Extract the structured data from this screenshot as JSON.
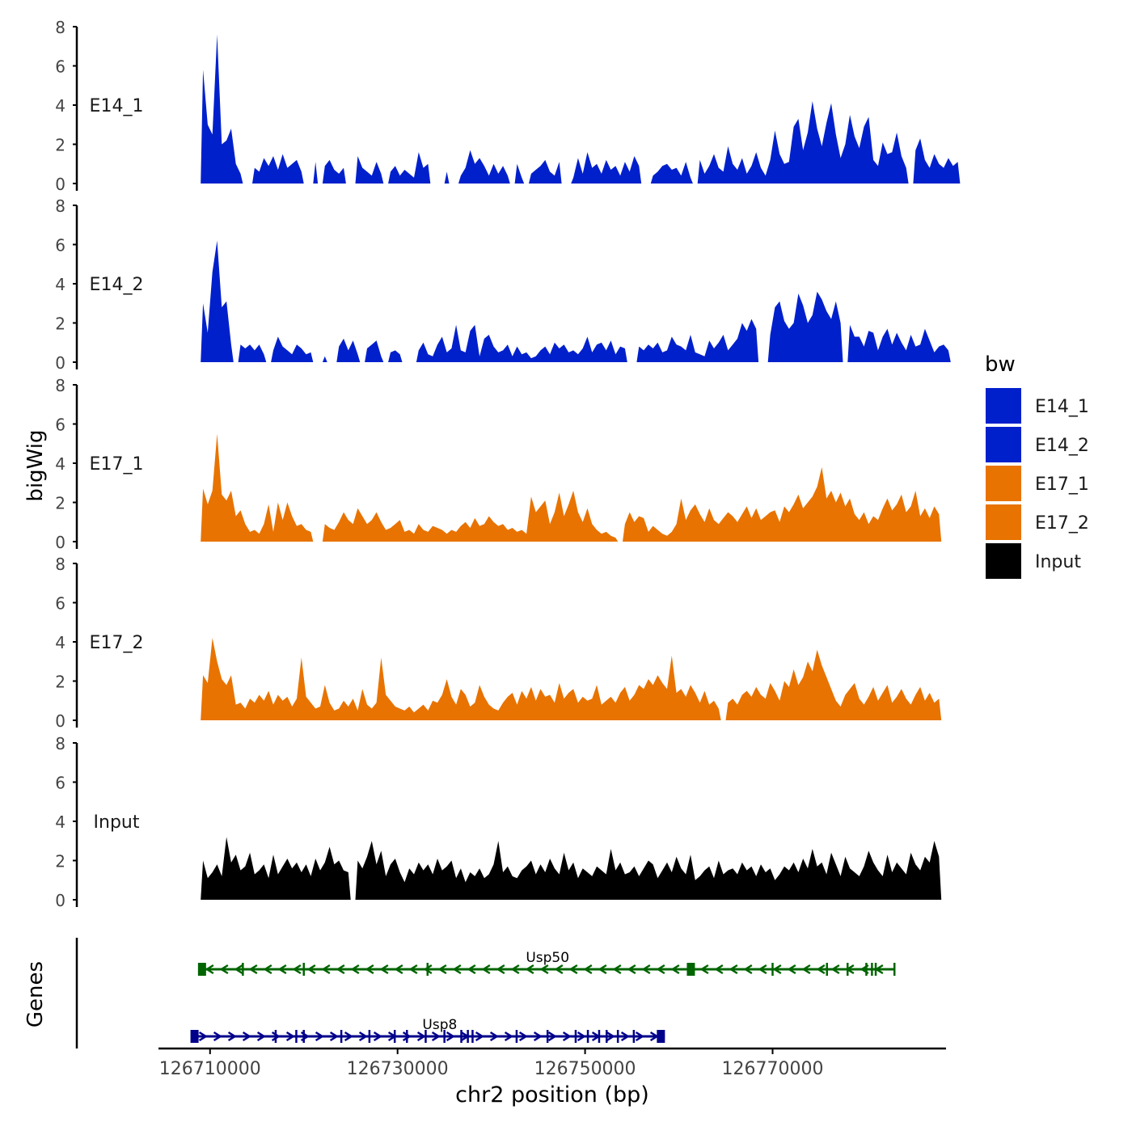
{
  "chart_data": {
    "type": "area",
    "title": "",
    "xlabel": "chr2 position (bp)",
    "ylabel": "bigWig",
    "genes_label": "Genes",
    "xlim": [
      126704500,
      126788500
    ],
    "x_ticks": [
      126710000,
      126730000,
      126750000,
      126770000
    ],
    "x_tick_labels": [
      "126710000",
      "126730000",
      "126750000",
      "126770000"
    ],
    "ylim": [
      0,
      8
    ],
    "y_ticks": [
      0,
      2,
      4,
      6,
      8
    ],
    "y_tick_labels": [
      "0",
      "2",
      "4",
      "6",
      "8"
    ],
    "track_start": 126709000,
    "track_end": 126785000,
    "bin_size": 500,
    "legend": {
      "title": "bw",
      "position": "right",
      "entries": [
        {
          "label": "E14_1",
          "color": "#0020CC"
        },
        {
          "label": "E14_2",
          "color": "#0020CC"
        },
        {
          "label": "E17_1",
          "color": "#E87300"
        },
        {
          "label": "E17_2",
          "color": "#E87300"
        },
        {
          "label": "Input",
          "color": "#000000"
        }
      ]
    },
    "series": [
      {
        "name": "E14_1",
        "color": "#0020CC",
        "values": [
          5.8,
          3.0,
          2.5,
          7.6,
          2.0,
          2.2,
          2.8,
          1.0,
          0.5,
          0,
          0,
          0.8,
          0.6,
          1.3,
          0.9,
          1.4,
          0.7,
          1.5,
          0.8,
          1.0,
          1.2,
          0.6,
          0,
          0,
          1.1,
          0,
          0.9,
          1.2,
          0.7,
          0.5,
          0.8,
          0,
          0,
          1.4,
          0.8,
          0.6,
          0.4,
          1.1,
          0.5,
          0,
          0.6,
          0.9,
          0.4,
          0.7,
          0.5,
          0.3,
          1.6,
          0.8,
          1.0,
          0,
          0,
          0,
          0.6,
          0,
          0,
          0.4,
          0.8,
          1.7,
          1.0,
          1.3,
          0.9,
          0.4,
          1.0,
          0.5,
          0.9,
          0.4,
          0,
          1.0,
          0.3,
          0,
          0.5,
          0.7,
          0.9,
          1.2,
          0.6,
          0.4,
          1.1,
          0,
          0,
          0.3,
          1.3,
          0.5,
          1.6,
          0.8,
          1.0,
          0.5,
          1.2,
          0.7,
          0.9,
          0.4,
          1.1,
          0.6,
          1.4,
          0.9,
          0,
          0,
          0.4,
          0.6,
          0.9,
          1.0,
          0.7,
          0.8,
          0.4,
          1.1,
          0.3,
          0,
          1.2,
          0.5,
          0.9,
          1.5,
          0.8,
          0.6,
          1.9,
          1.0,
          0.7,
          1.3,
          0.5,
          0.9,
          1.6,
          0.8,
          0.4,
          1.2,
          2.7,
          1.5,
          1.0,
          1.1,
          2.9,
          3.3,
          1.7,
          2.6,
          4.2,
          2.8,
          1.9,
          3.1,
          4.1,
          2.5,
          1.3,
          2.0,
          3.5,
          2.4,
          1.8,
          2.9,
          3.4,
          1.2,
          0.9,
          2.1,
          1.5,
          1.6,
          2.6,
          1.4,
          0.8,
          0,
          1.7,
          2.3,
          1.2,
          0.8,
          1.5,
          1.0,
          0.8,
          1.3,
          0.9,
          1.1
        ]
      },
      {
        "name": "E14_2",
        "color": "#0020CC",
        "values": [
          3.0,
          1.5,
          4.6,
          6.2,
          2.8,
          3.1,
          0.9,
          0,
          0.9,
          0.7,
          0.9,
          0.6,
          0.9,
          0.4,
          0,
          0.6,
          1.3,
          0.8,
          0.6,
          0.4,
          0.9,
          0.7,
          0.4,
          0.5,
          0,
          0,
          0.3,
          0,
          0,
          0.8,
          1.2,
          0.6,
          1.1,
          0.4,
          0,
          0.7,
          0.9,
          1.1,
          0.3,
          0,
          0.5,
          0.6,
          0.4,
          0,
          0,
          0,
          0.6,
          1.0,
          0.4,
          0.3,
          0.9,
          1.3,
          0.5,
          0.7,
          1.9,
          0.6,
          0.5,
          1.6,
          1.9,
          0.3,
          1.2,
          1.4,
          0.8,
          0.5,
          0.6,
          0.9,
          0.3,
          0.8,
          0.4,
          0.5,
          0.2,
          0.3,
          0.6,
          0.8,
          0.4,
          1.0,
          0.7,
          0.9,
          0.5,
          0.6,
          0.4,
          0.7,
          1.3,
          0.5,
          0.9,
          1.0,
          0.6,
          1.1,
          0.4,
          0.8,
          0.7,
          0,
          0,
          0.8,
          0.6,
          0.9,
          0.7,
          1.0,
          0.5,
          0.6,
          1.3,
          0.9,
          0.8,
          0.6,
          1.4,
          0.5,
          0.4,
          0.3,
          1.1,
          0.7,
          1.0,
          1.4,
          0.6,
          0.9,
          1.2,
          2.0,
          1.6,
          2.2,
          1.7,
          0,
          0,
          1.4,
          2.8,
          3.1,
          2.1,
          1.7,
          2.0,
          3.5,
          2.9,
          2.0,
          2.4,
          3.6,
          3.2,
          2.6,
          2.2,
          3.1,
          2.0,
          0,
          1.9,
          1.3,
          1.3,
          0.8,
          1.6,
          1.5,
          0.6,
          1.3,
          1.7,
          0.9,
          1.5,
          1.0,
          0.6,
          1.4,
          0.8,
          0.9,
          1.7,
          1.1,
          0.5,
          0.8,
          0.9,
          0.6
        ]
      },
      {
        "name": "E17_1",
        "color": "#E87300",
        "values": [
          2.7,
          1.9,
          2.6,
          5.5,
          2.4,
          2.1,
          2.6,
          1.3,
          1.6,
          0.9,
          0.5,
          0.6,
          0.4,
          0.9,
          1.9,
          0.5,
          2.0,
          1.1,
          2.0,
          1.3,
          0.8,
          0.9,
          0.6,
          0.5,
          0,
          0,
          0.9,
          0.7,
          0.6,
          1.0,
          1.5,
          1.1,
          0.9,
          1.7,
          1.3,
          0.9,
          1.1,
          1.5,
          1.0,
          0.6,
          0.7,
          0.9,
          1.1,
          0.5,
          0.6,
          0.4,
          0.9,
          0.6,
          0.5,
          0.8,
          0.7,
          0.6,
          0.4,
          0.6,
          0.5,
          0.8,
          1.0,
          0.7,
          1.2,
          0.8,
          0.9,
          1.3,
          1.0,
          0.8,
          0.9,
          0.6,
          0.7,
          0.5,
          0.6,
          0.4,
          2.3,
          1.5,
          1.8,
          2.1,
          0.9,
          1.5,
          2.5,
          1.3,
          1.9,
          2.6,
          1.5,
          1.0,
          1.7,
          0.9,
          0.6,
          0.4,
          0.5,
          0.3,
          0.2,
          0,
          0.9,
          1.5,
          1.0,
          1.3,
          1.2,
          0.5,
          0.8,
          0.6,
          0.4,
          0.3,
          0.5,
          0.9,
          2.2,
          1.1,
          1.6,
          1.9,
          1.4,
          1.0,
          1.7,
          1.1,
          0.9,
          1.2,
          1.5,
          1.3,
          1.0,
          1.4,
          1.8,
          1.2,
          1.7,
          1.1,
          1.3,
          1.5,
          1.6,
          1.0,
          1.8,
          1.5,
          1.9,
          2.4,
          1.7,
          2.0,
          2.3,
          2.8,
          3.8,
          2.2,
          2.6,
          2.0,
          2.5,
          1.8,
          2.2,
          1.4,
          1.1,
          1.5,
          0.9,
          1.3,
          1.1,
          1.7,
          2.2,
          1.6,
          1.9,
          2.4,
          1.5,
          1.8,
          2.6,
          1.3,
          1.7,
          1.2,
          1.8,
          1.4
        ]
      },
      {
        "name": "E17_2",
        "color": "#E87300",
        "values": [
          2.3,
          1.9,
          4.2,
          3.0,
          2.1,
          1.8,
          2.3,
          0.8,
          0.9,
          0.6,
          1.1,
          0.9,
          1.3,
          1.0,
          1.5,
          0.8,
          1.3,
          1.0,
          1.2,
          0.7,
          1.1,
          3.2,
          1.2,
          0.9,
          0.6,
          0.7,
          1.8,
          0.9,
          0.5,
          0.6,
          1.0,
          0.7,
          1.1,
          0.5,
          1.6,
          0.8,
          0.6,
          0.9,
          3.2,
          1.3,
          1.0,
          0.7,
          0.6,
          0.5,
          0.7,
          0.4,
          0.6,
          0.8,
          0.5,
          1.0,
          0.9,
          1.3,
          2.1,
          1.2,
          0.8,
          1.6,
          1.3,
          0.7,
          0.9,
          1.8,
          1.2,
          0.8,
          0.6,
          0.5,
          0.9,
          1.2,
          1.4,
          0.8,
          1.5,
          1.1,
          1.7,
          1.0,
          1.6,
          1.2,
          1.3,
          0.9,
          1.9,
          1.1,
          1.4,
          1.6,
          0.9,
          1.2,
          1.0,
          1.1,
          1.8,
          0.8,
          1.0,
          1.2,
          0.9,
          1.4,
          1.7,
          1.0,
          1.3,
          1.8,
          1.6,
          2.1,
          1.8,
          2.3,
          1.9,
          1.6,
          3.3,
          1.4,
          1.6,
          1.2,
          1.8,
          1.4,
          0.9,
          1.5,
          0.8,
          1.0,
          0.6,
          0,
          0.9,
          1.1,
          0.8,
          1.3,
          1.5,
          1.2,
          1.7,
          1.3,
          1.1,
          1.9,
          1.5,
          1.0,
          2.0,
          1.7,
          2.6,
          1.8,
          2.2,
          3.0,
          2.5,
          3.6,
          2.8,
          2.2,
          1.6,
          1.0,
          0.7,
          1.3,
          1.6,
          1.9,
          1.1,
          0.8,
          1.2,
          1.7,
          1.0,
          1.4,
          1.8,
          0.9,
          1.2,
          1.6,
          1.1,
          0.8,
          1.3,
          1.7,
          1.0,
          1.4,
          0.9,
          1.1
        ]
      },
      {
        "name": "Input",
        "color": "#000000",
        "values": [
          2.0,
          1.1,
          1.4,
          1.8,
          1.2,
          3.2,
          1.9,
          2.3,
          1.5,
          1.7,
          2.4,
          1.3,
          1.5,
          1.8,
          1.1,
          2.3,
          1.3,
          1.7,
          2.1,
          1.6,
          1.9,
          1.4,
          1.8,
          1.2,
          2.1,
          1.5,
          1.9,
          2.7,
          1.8,
          2.0,
          1.5,
          1.4,
          0,
          2.0,
          1.6,
          2.2,
          3.0,
          1.8,
          2.5,
          1.2,
          1.8,
          2.1,
          1.4,
          0.9,
          1.6,
          1.3,
          1.9,
          1.5,
          1.8,
          1.3,
          2.1,
          1.5,
          1.7,
          2.0,
          1.1,
          1.6,
          0.9,
          1.4,
          1.2,
          1.6,
          1.1,
          1.3,
          1.8,
          3.0,
          1.4,
          1.7,
          1.2,
          1.1,
          1.5,
          1.7,
          2.0,
          1.3,
          1.8,
          1.4,
          2.1,
          1.6,
          1.3,
          2.4,
          1.5,
          1.9,
          1.1,
          1.6,
          1.4,
          1.2,
          1.7,
          1.5,
          1.3,
          2.6,
          1.5,
          1.9,
          1.3,
          1.4,
          1.7,
          1.2,
          1.6,
          2.0,
          1.8,
          1.1,
          1.5,
          1.9,
          1.4,
          2.2,
          1.6,
          1.3,
          2.3,
          1.0,
          1.2,
          1.5,
          1.7,
          1.1,
          2.0,
          1.3,
          1.5,
          1.6,
          1.3,
          1.9,
          1.5,
          1.7,
          1.2,
          1.8,
          1.4,
          1.6,
          1.0,
          1.3,
          1.7,
          1.5,
          1.9,
          1.4,
          2.1,
          1.6,
          2.6,
          1.7,
          1.9,
          1.3,
          2.4,
          1.8,
          1.2,
          2.2,
          1.6,
          1.4,
          1.2,
          1.7,
          2.5,
          1.9,
          1.5,
          1.2,
          2.3,
          1.4,
          1.9,
          1.6,
          1.3,
          2.4,
          1.8,
          1.5,
          2.2,
          1.9,
          3.0,
          2.2
        ]
      }
    ],
    "genes": [
      {
        "name": "Usp50",
        "strand": "-",
        "color": "#006400",
        "start": 126708800,
        "end": 126783000,
        "exons": [
          126709000,
          126713500,
          126720000,
          126733200,
          126761200,
          126770000,
          126775800,
          126778000,
          126780000,
          126780600,
          126781000,
          126783000
        ]
      },
      {
        "name": "Usp8",
        "strand": "+",
        "color": "#00008B",
        "start": 126708000,
        "end": 126758500,
        "exons": [
          126717000,
          126719200,
          126720000,
          126724000,
          126727000,
          126729700,
          126731000,
          126733000,
          126735000,
          126736800,
          126737500,
          126738000,
          126742700,
          126746000,
          126749000,
          126750300,
          126751500,
          126752300,
          126753500,
          126755200,
          126757800,
          126758200
        ]
      }
    ]
  }
}
